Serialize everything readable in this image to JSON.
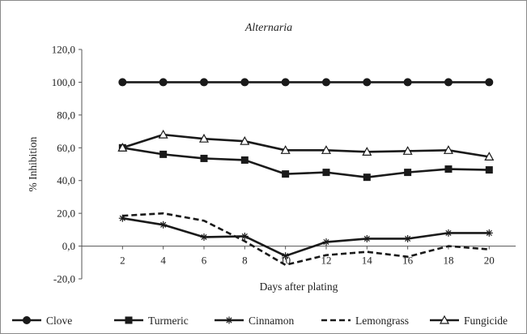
{
  "chart_data": {
    "type": "line",
    "title": "Alternaria",
    "xlabel": "Days after plating",
    "ylabel": "% Inhibition",
    "x": [
      2,
      4,
      6,
      8,
      10,
      12,
      14,
      16,
      18,
      20
    ],
    "x_tick_labels": [
      "2",
      "4",
      "6",
      "8",
      "10",
      "12",
      "14",
      "16",
      "18",
      "20"
    ],
    "ylim": [
      -20,
      120
    ],
    "y_ticks": [
      -20,
      0,
      20,
      40,
      60,
      80,
      100,
      120
    ],
    "y_tick_labels": [
      "-20,0",
      "0,0",
      "20,0",
      "40,0",
      "60,0",
      "80,0",
      "100,0",
      "120,0"
    ],
    "grid": false,
    "legend_position": "bottom",
    "series": [
      {
        "name": "Clove",
        "marker": "filled-circle",
        "line": "solid",
        "color": "#1a1a1a",
        "values": [
          100,
          100,
          100,
          100,
          100,
          100,
          100,
          100,
          100,
          100
        ]
      },
      {
        "name": "Turmeric",
        "marker": "filled-square",
        "line": "solid",
        "color": "#1a1a1a",
        "values": [
          60,
          56,
          53.5,
          52.5,
          44,
          45,
          42,
          45,
          47,
          46.5
        ]
      },
      {
        "name": "Cinnamon",
        "marker": "asterisk",
        "line": "solid",
        "color": "#1a1a1a",
        "values": [
          17,
          13,
          5.5,
          6,
          -6,
          2.5,
          4.5,
          4.5,
          8,
          8
        ]
      },
      {
        "name": "Lemongrass",
        "marker": "none",
        "line": "dashed",
        "color": "#1a1a1a",
        "values": [
          18.5,
          20,
          15.5,
          3,
          -11.5,
          -5.5,
          -3.5,
          -6.5,
          0,
          -2
        ]
      },
      {
        "name": "Fungicide",
        "marker": "open-triangle",
        "line": "solid",
        "color": "#1a1a1a",
        "values": [
          60,
          68,
          65.5,
          64,
          58.5,
          58.5,
          57.5,
          58,
          58.5,
          54.5
        ]
      }
    ]
  }
}
